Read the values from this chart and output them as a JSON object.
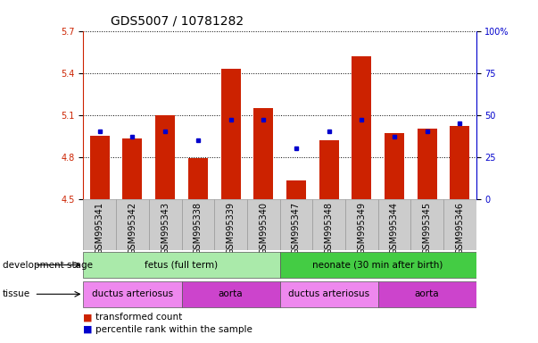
{
  "title": "GDS5007 / 10781282",
  "samples": [
    "GSM995341",
    "GSM995342",
    "GSM995343",
    "GSM995338",
    "GSM995339",
    "GSM995340",
    "GSM995347",
    "GSM995348",
    "GSM995349",
    "GSM995344",
    "GSM995345",
    "GSM995346"
  ],
  "transformed_count": [
    4.95,
    4.93,
    5.1,
    4.79,
    5.43,
    5.15,
    4.63,
    4.92,
    5.52,
    4.97,
    5.0,
    5.02
  ],
  "percentile_rank": [
    40,
    37,
    40,
    35,
    47,
    47,
    30,
    40,
    47,
    37,
    40,
    45
  ],
  "y_min": 4.5,
  "y_max": 5.7,
  "y_ticks": [
    4.5,
    4.8,
    5.1,
    5.4,
    5.7
  ],
  "right_y_ticks": [
    0,
    25,
    50,
    75,
    100
  ],
  "bar_color": "#cc2200",
  "dot_color": "#0000cc",
  "development_stage_groups": [
    {
      "label": "fetus (full term)",
      "start": 0,
      "end": 6,
      "color": "#aaeaaa"
    },
    {
      "label": "neonate (30 min after birth)",
      "start": 6,
      "end": 12,
      "color": "#44cc44"
    }
  ],
  "tissue_groups": [
    {
      "label": "ductus arteriosus",
      "start": 0,
      "end": 3,
      "color": "#ee88ee"
    },
    {
      "label": "aorta",
      "start": 3,
      "end": 6,
      "color": "#cc44cc"
    },
    {
      "label": "ductus arteriosus",
      "start": 6,
      "end": 9,
      "color": "#ee88ee"
    },
    {
      "label": "aorta",
      "start": 9,
      "end": 12,
      "color": "#cc44cc"
    }
  ],
  "legend_items": [
    {
      "label": "transformed count",
      "color": "#cc2200"
    },
    {
      "label": "percentile rank within the sample",
      "color": "#0000cc"
    }
  ],
  "left_axis_color": "#cc2200",
  "right_axis_color": "#0000cc",
  "title_fontsize": 10,
  "tick_fontsize": 7,
  "annot_fontsize": 7.5,
  "sample_box_color": "#cccccc",
  "sample_box_edge": "#999999"
}
